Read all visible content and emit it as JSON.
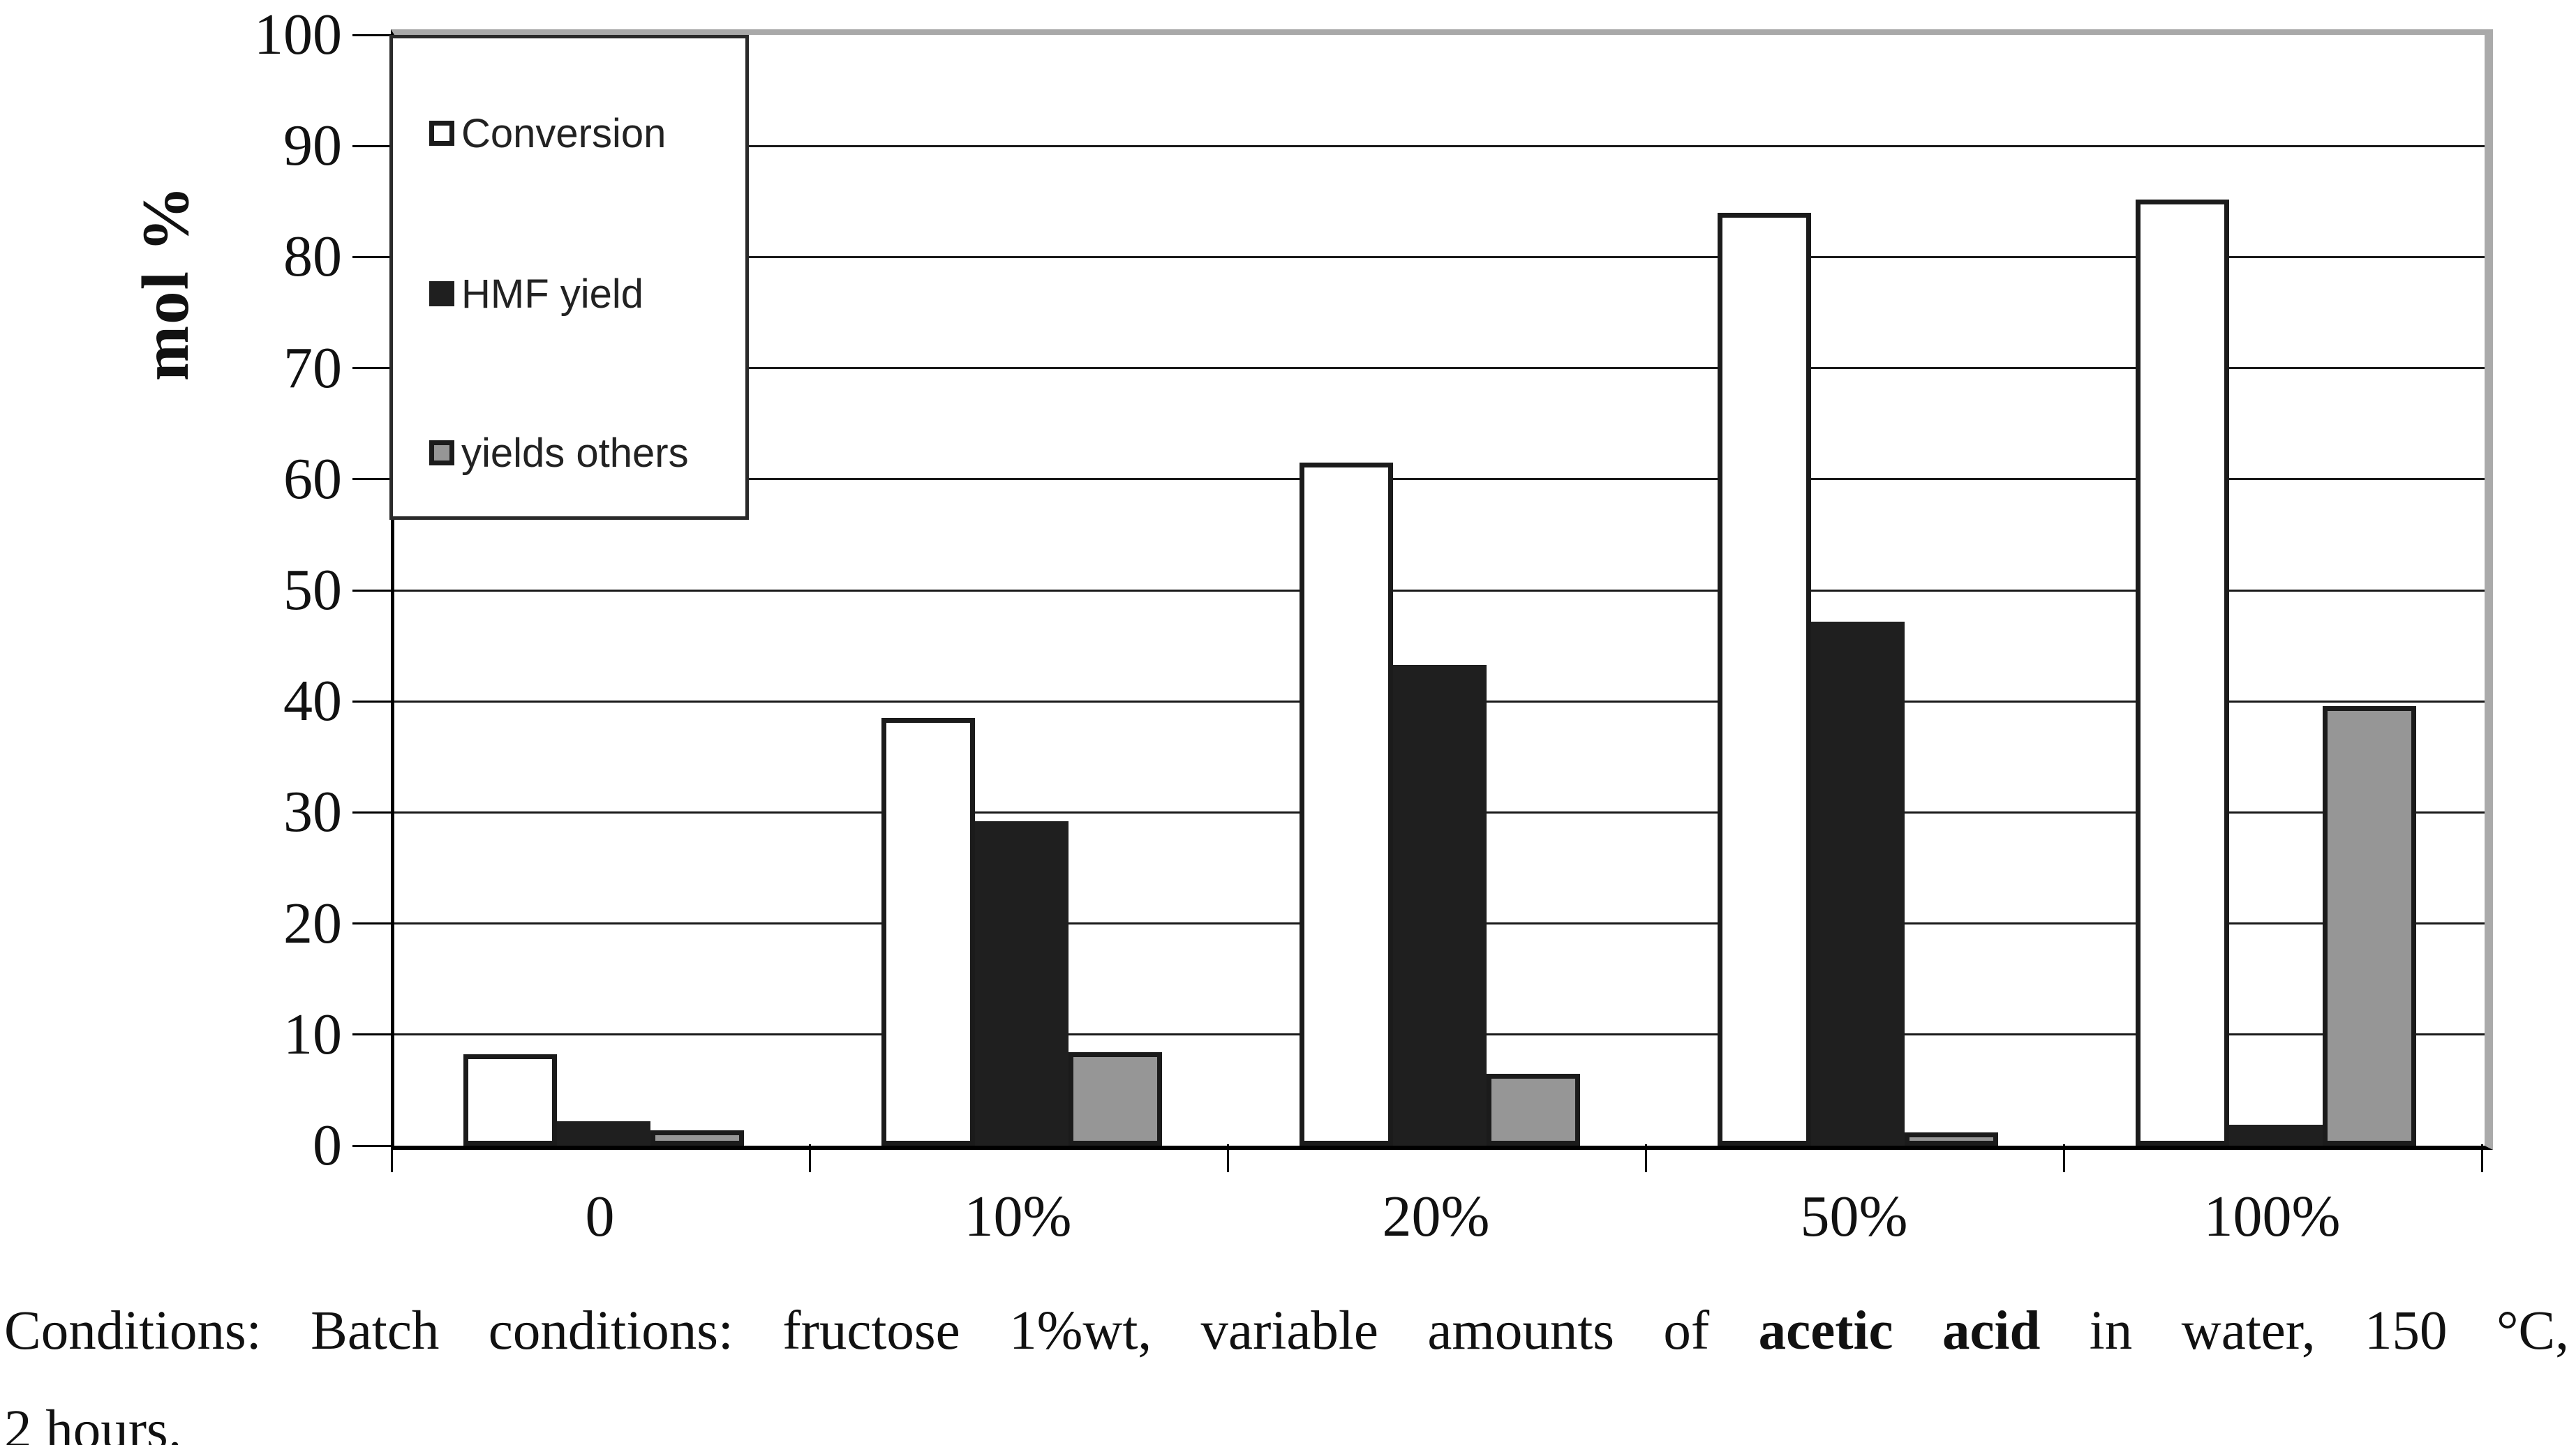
{
  "chart": {
    "y_axis": {
      "title": "mol %",
      "tick_labels": [
        "0",
        "10",
        "20",
        "30",
        "40",
        "50",
        "60",
        "70",
        "80",
        "90",
        "100"
      ],
      "min": 0,
      "max": 100,
      "step": 10
    },
    "x_axis": {
      "categories": [
        "0",
        "10%",
        "20%",
        "50%",
        "100%"
      ]
    },
    "legend": {
      "items": [
        {
          "label": "Conversion",
          "fill": "#ffffff"
        },
        {
          "label": "HMF yield",
          "fill": "#1f1f1f"
        },
        {
          "label": "yields others",
          "fill": "#969696"
        }
      ]
    }
  },
  "chart_data": {
    "type": "bar",
    "categories": [
      "0",
      "10%",
      "20%",
      "50%",
      "100%"
    ],
    "series": [
      {
        "name": "Conversion",
        "values": [
          8.2,
          38.5,
          61.5,
          84.0,
          85.2
        ]
      },
      {
        "name": "HMF yield",
        "values": [
          2.2,
          29.2,
          43.3,
          47.2,
          1.9
        ]
      },
      {
        "name": "yields others",
        "values": [
          1.4,
          8.4,
          6.5,
          1.2,
          39.6
        ]
      }
    ],
    "title": "",
    "xlabel": "",
    "ylabel": "mol %",
    "ylim": [
      0,
      100
    ],
    "grid": "horizontal, every 10",
    "legend_position": "upper-left inside plot"
  },
  "caption": {
    "line1_before": "Conditions: Batch conditions: fructose 1%wt, variable amounts of ",
    "line1_bold": "acetic acid",
    "line1_after": " in water, 150 °C,",
    "line2": "2 hours."
  },
  "colors": {
    "bar_conversion_fill": "#ffffff",
    "bar_hmf_fill": "#1f1f1f",
    "bar_others_fill": "#969696",
    "bar_border": "#1b1b1b",
    "gridline": "#1a1a1a",
    "axis": "#000000",
    "plot_outer_border": "#a9a9a9",
    "text": "#111111"
  }
}
